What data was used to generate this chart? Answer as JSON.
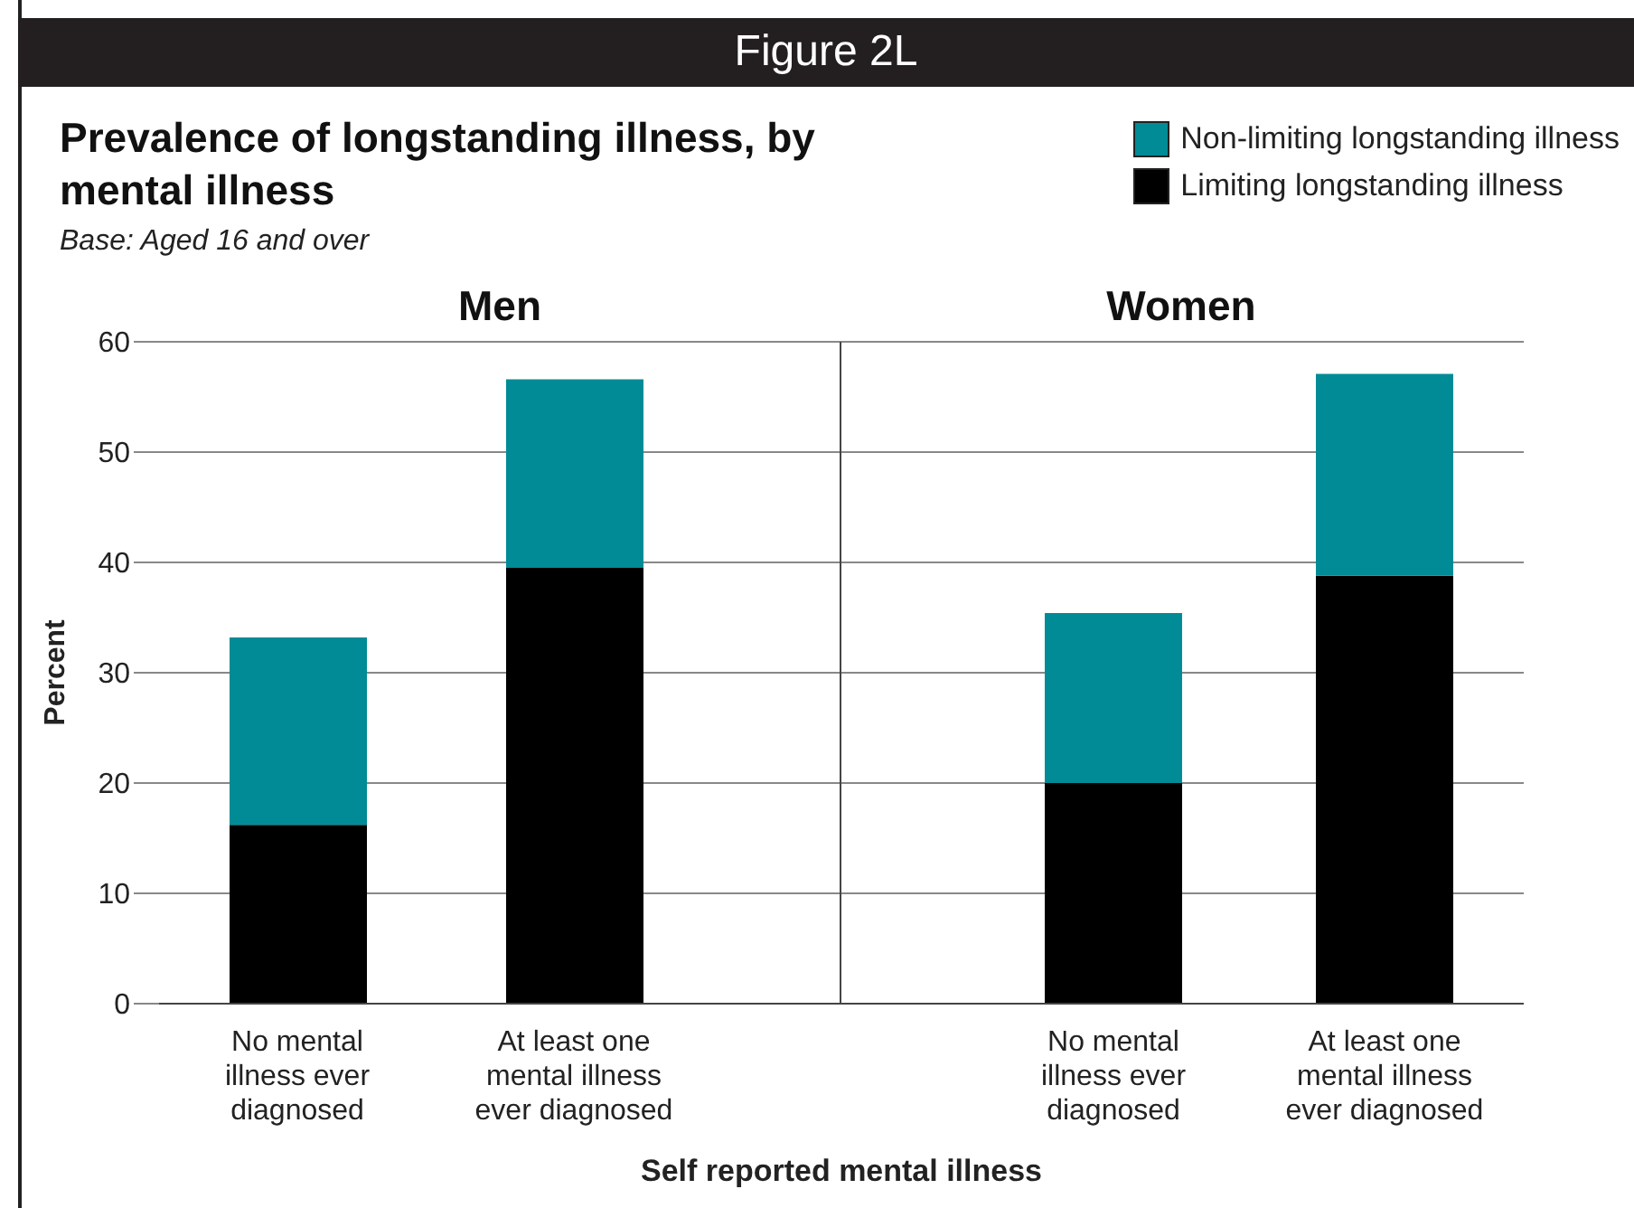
{
  "chart_data": [
    {
      "type": "bar",
      "title": "Prevalence of longstanding illness, by mental illness",
      "subtitle": "Base: Aged 16 and over",
      "annotations": [
        "Figure 2L",
        "Men"
      ],
      "ylabel": "Percent",
      "xlabel": "Self reported mental illness",
      "categories": [
        "No mental illness ever diagnosed",
        "At least one mental illness ever diagnosed"
      ],
      "stacked": true,
      "grid": "y",
      "legend": "top right",
      "ylim": [
        0,
        60
      ],
      "yticks": [
        0,
        10,
        20,
        30,
        40,
        50,
        60
      ],
      "series": [
        {
          "name": "Limiting longstanding illness",
          "color": "#000000",
          "values": [
            16.2,
            39.5
          ]
        },
        {
          "name": "Non-limiting longstanding illness",
          "color": "#008b96",
          "values": [
            17.0,
            17.1
          ]
        }
      ]
    },
    {
      "type": "bar",
      "annotations": [
        "Women"
      ],
      "categories": [
        "No mental illness ever diagnosed",
        "At least one mental illness ever diagnosed"
      ],
      "stacked": true,
      "grid": "y",
      "tick_labels": "x",
      "ylim": [
        0,
        60
      ],
      "yticks": [
        0,
        10,
        20,
        30,
        40,
        50,
        60
      ],
      "series": [
        {
          "color": "#000000",
          "values": [
            20.0,
            38.8
          ]
        },
        {
          "color": "#008b96",
          "values": [
            15.4,
            18.3
          ]
        }
      ]
    }
  ]
}
